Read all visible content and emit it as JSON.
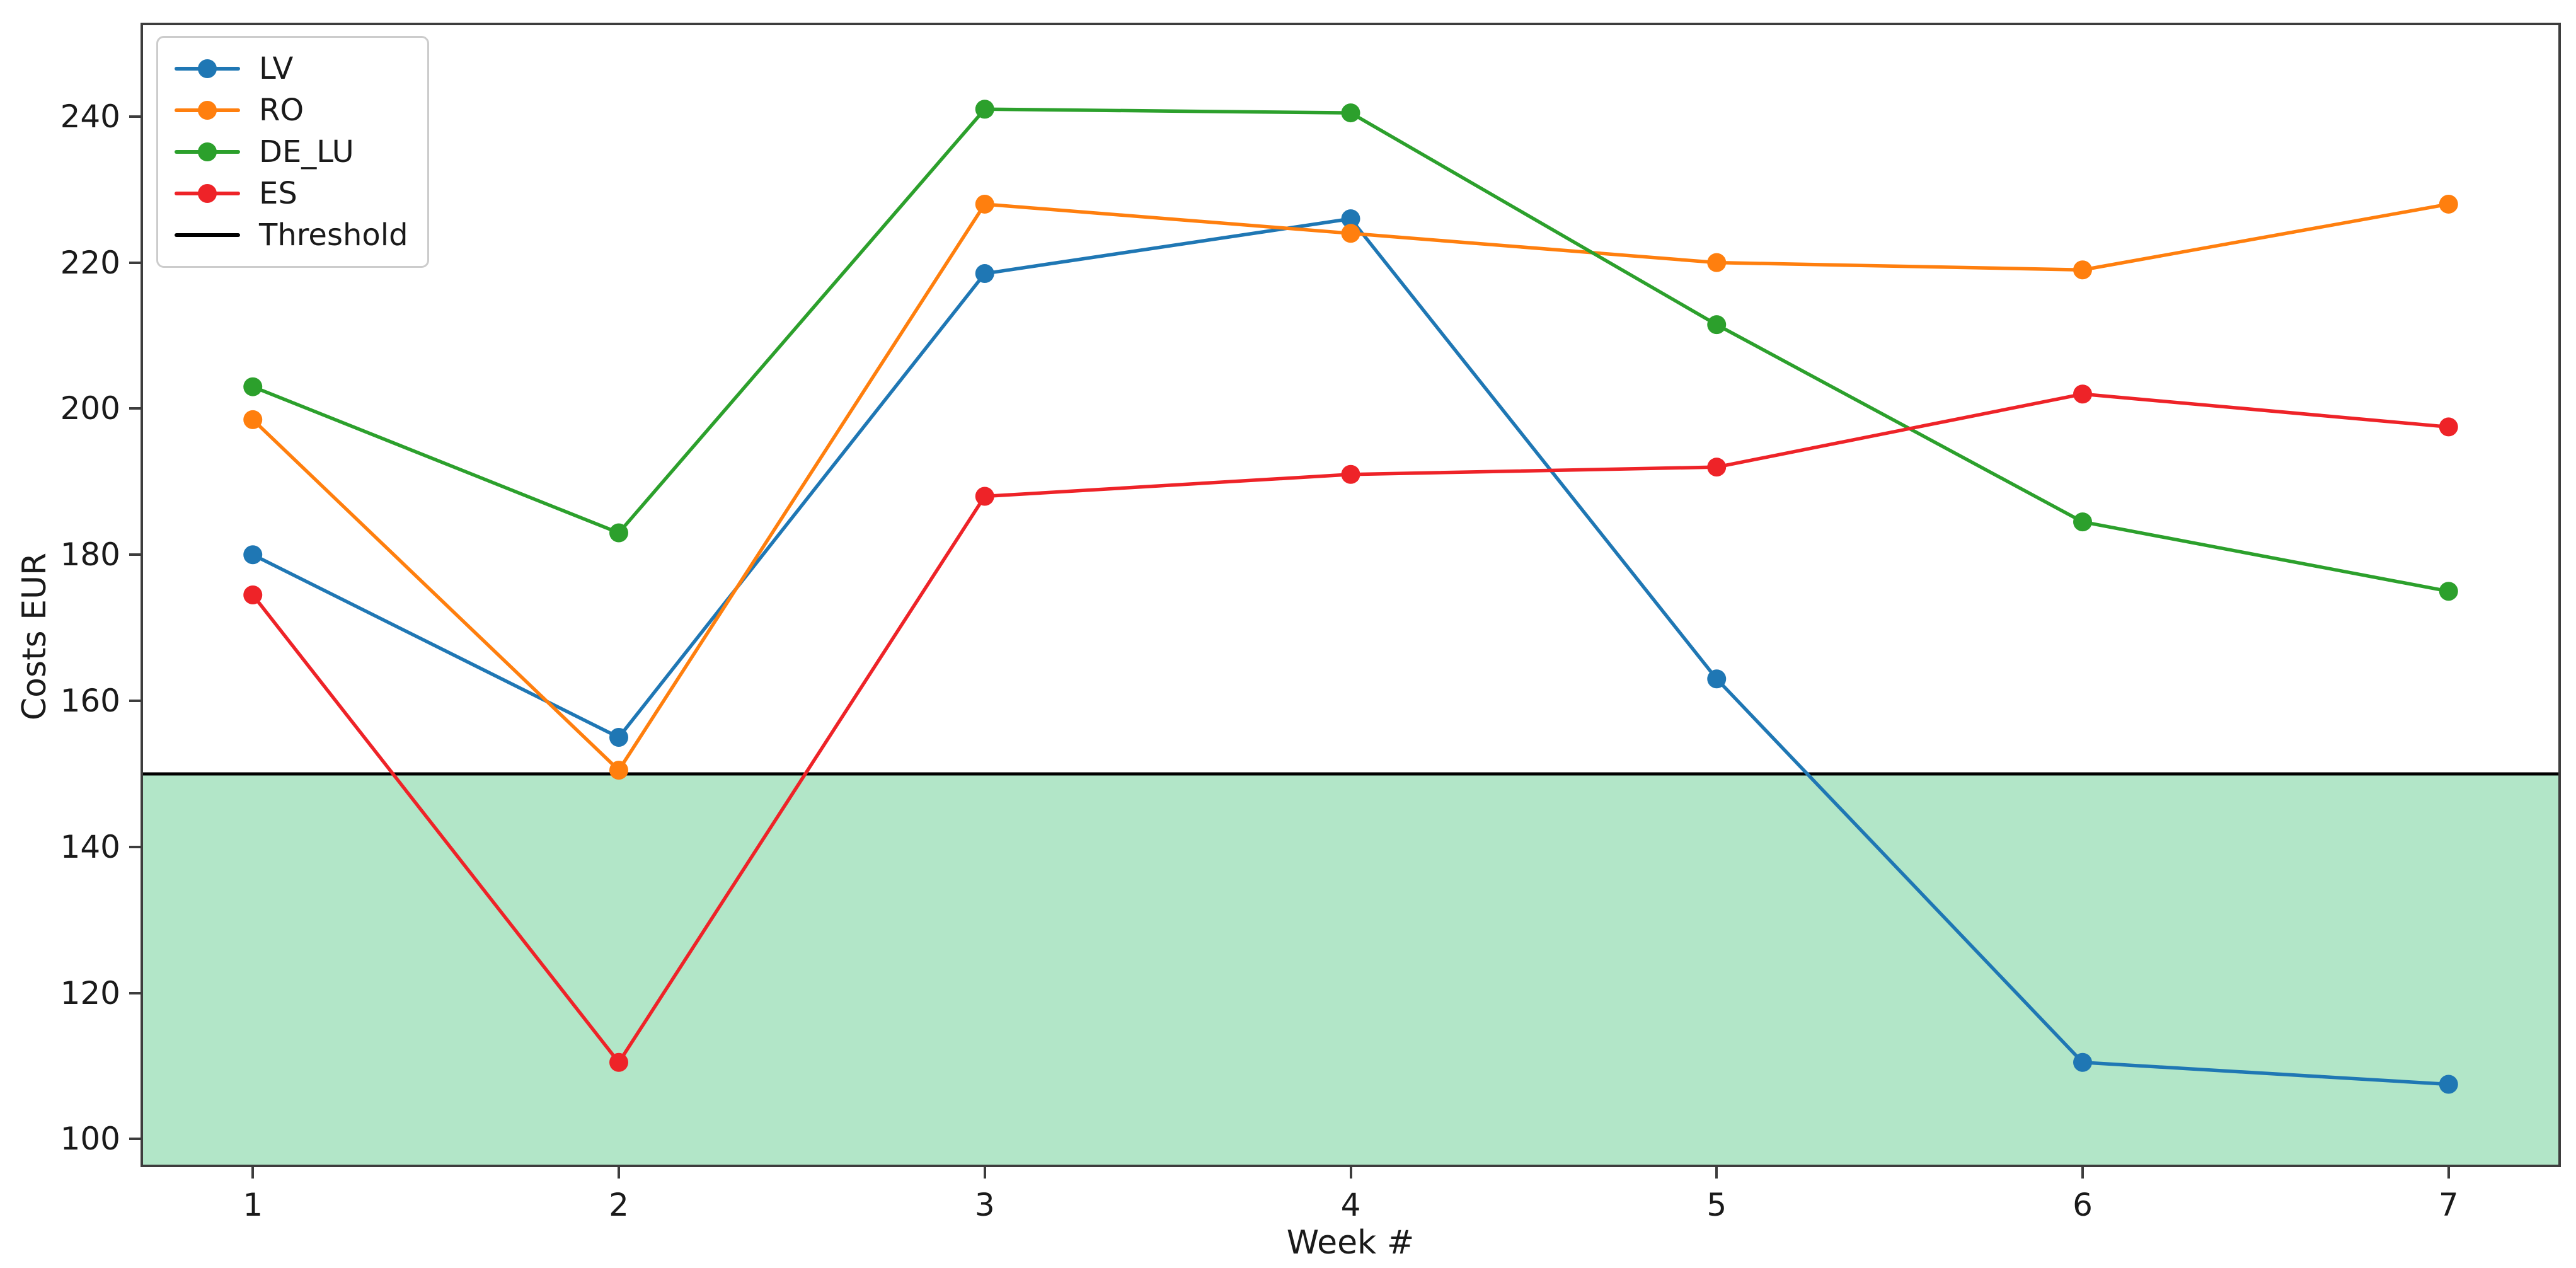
{
  "chart_data": {
    "type": "line",
    "title": "",
    "xlabel": "Week #",
    "ylabel": "Costs EUR",
    "x": [
      1,
      2,
      3,
      4,
      5,
      6,
      7
    ],
    "xticks": [
      1,
      2,
      3,
      4,
      5,
      6,
      7
    ],
    "yticks": [
      100,
      120,
      140,
      160,
      180,
      200,
      220,
      240
    ],
    "xlim": [
      0.7,
      7.3
    ],
    "ylim": [
      96.5,
      252.5
    ],
    "grid": false,
    "legend_position": "upper-left",
    "series": [
      {
        "name": "LV",
        "color": "#1f77b4",
        "marker": "circle",
        "values": [
          180,
          155,
          218.5,
          226,
          163,
          110.5,
          107.5
        ]
      },
      {
        "name": "RO",
        "color": "#ff7f0e",
        "marker": "circle",
        "values": [
          198.5,
          150.5,
          228,
          224,
          220,
          219,
          228
        ]
      },
      {
        "name": "DE_LU",
        "color": "#2ca02c",
        "marker": "circle",
        "values": [
          203,
          183,
          241,
          240.5,
          211.5,
          184.5,
          175
        ]
      },
      {
        "name": "ES",
        "color": "#ee2328",
        "marker": "circle",
        "values": [
          174.5,
          110.5,
          188,
          191,
          192,
          202,
          197.5
        ]
      }
    ],
    "threshold": {
      "label": "Threshold",
      "value": 150,
      "color": "#000000"
    },
    "band": {
      "from": 96.5,
      "to": 150,
      "color": "#b2e6c8"
    },
    "colors": {
      "spine": "#3d3d3d",
      "tick_text": "#1a1a1a",
      "legend_border": "#cccccc",
      "background": "#ffffff"
    }
  }
}
